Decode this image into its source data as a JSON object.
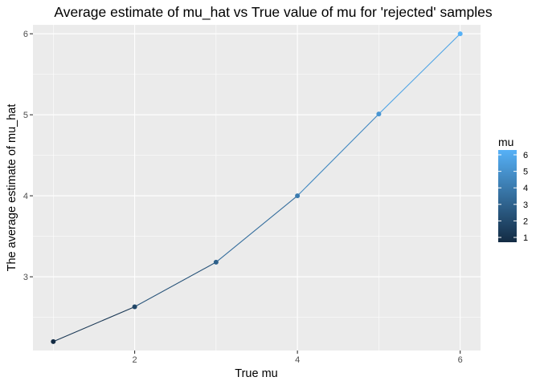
{
  "chart_data": {
    "type": "line",
    "title": "Average estimate of mu_hat vs True value of mu for 'rejected' samples",
    "xlabel": "True mu",
    "ylabel": "The average estimate of mu_hat",
    "xlim": [
      0.75,
      6.25
    ],
    "ylim": [
      2.09,
      6.11
    ],
    "x_ticks": [
      2,
      4,
      6
    ],
    "y_ticks": [
      3,
      4,
      5,
      6
    ],
    "x_tick_labels": [
      "2",
      "4",
      "6"
    ],
    "y_tick_labels": [
      "3",
      "4",
      "5",
      "6"
    ],
    "grid": true,
    "x": [
      1,
      2,
      3,
      4,
      5,
      6
    ],
    "values": [
      2.2,
      2.63,
      3.18,
      4.0,
      5.01,
      6.0
    ],
    "color_by": "mu",
    "legend": {
      "title": "mu",
      "placement": "right",
      "ticks": [
        1,
        2,
        3,
        4,
        5,
        6
      ],
      "tick_labels": [
        "1",
        "2",
        "3",
        "4",
        "5",
        "6"
      ],
      "low_color": "#132B43",
      "high_color": "#56B1F7"
    },
    "colors": {
      "panel_background": "#EBEBEB",
      "grid_major": "#FFFFFF"
    }
  }
}
